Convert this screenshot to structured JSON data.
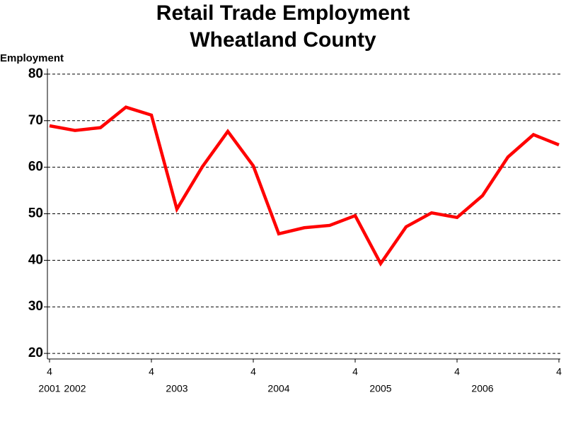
{
  "chart_data": {
    "type": "line",
    "title": "Retail Trade Employment",
    "subtitle": "Wheatland County",
    "y_label": "Employment",
    "categories": [
      "4",
      null,
      null,
      null,
      "4",
      null,
      null,
      null,
      "4",
      null,
      null,
      null,
      "4",
      null,
      null,
      null,
      "4",
      null,
      null,
      null,
      "4"
    ],
    "year_labels": [
      "2001",
      "2002",
      null,
      null,
      null,
      "2003",
      null,
      null,
      null,
      "2004",
      null,
      null,
      null,
      "2005",
      null,
      null,
      null,
      "2006",
      null,
      null,
      null
    ],
    "series": [
      {
        "name": "Employment",
        "color": "#ff0000",
        "values": [
          68.9,
          67.9,
          68.5,
          72.9,
          71.2,
          51,
          60.1,
          67.7,
          60.3,
          45.7,
          47,
          47.5,
          49.6,
          39.3,
          47.2,
          50.2,
          49.2,
          53.9,
          62.2,
          67,
          64.8
        ]
      }
    ],
    "ylim": [
      18.8,
      81.2
    ],
    "yticks": [
      20,
      30,
      40,
      50,
      60,
      70,
      80
    ],
    "grid": true
  }
}
